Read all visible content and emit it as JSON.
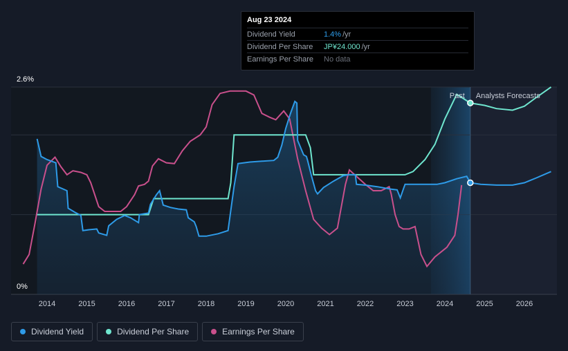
{
  "tooltip": {
    "date": "Aug 23 2024",
    "rows": [
      {
        "label": "Dividend Yield",
        "value": "1.4%",
        "unit": "/yr",
        "color": "#2e9be8"
      },
      {
        "label": "Dividend Per Share",
        "value": "JP¥24.000",
        "unit": "/yr",
        "color": "#6fe6cf"
      },
      {
        "label": "Earnings Per Share",
        "value": "No data",
        "unit": "",
        "color": "#6b707a"
      }
    ]
  },
  "markers": {
    "past": "Past",
    "forecast": "Analysts Forecasts"
  },
  "legend": [
    {
      "label": "Dividend Yield",
      "color": "#2e9be8"
    },
    {
      "label": "Dividend Per Share",
      "color": "#6fe6cf"
    },
    {
      "label": "Earnings Per Share",
      "color": "#c9508c"
    }
  ],
  "colors": {
    "yield": "#2e9be8",
    "dps": "#6fe6cf",
    "eps": "#c9508c",
    "background": "#151b27"
  },
  "chart_data": {
    "type": "line",
    "x_ticks": [
      "2014",
      "2015",
      "2016",
      "2017",
      "2018",
      "2019",
      "2020",
      "2021",
      "2022",
      "2023",
      "2024",
      "2025",
      "2026"
    ],
    "y_ticks": [
      "2.6%",
      "0%"
    ],
    "ylim": [
      0,
      2.6
    ],
    "xlim": [
      2013.4,
      2026.67
    ],
    "past_end": 2024.64,
    "forecast_shade_start": 2023.65,
    "series": [
      {
        "name": "Dividend Yield",
        "unit": "%",
        "points": [
          [
            2013.75,
            1.95
          ],
          [
            2013.85,
            1.73
          ],
          [
            2014.0,
            1.69
          ],
          [
            2014.22,
            1.65
          ],
          [
            2014.27,
            1.35
          ],
          [
            2014.5,
            1.3
          ],
          [
            2014.53,
            1.08
          ],
          [
            2014.7,
            1.03
          ],
          [
            2014.85,
            0.99
          ],
          [
            2014.9,
            0.8
          ],
          [
            2015.05,
            0.81
          ],
          [
            2015.25,
            0.82
          ],
          [
            2015.3,
            0.77
          ],
          [
            2015.5,
            0.74
          ],
          [
            2015.55,
            0.86
          ],
          [
            2015.75,
            0.94
          ],
          [
            2015.95,
            0.99
          ],
          [
            2016.1,
            0.96
          ],
          [
            2016.3,
            0.9
          ],
          [
            2016.32,
            1.0
          ],
          [
            2016.55,
            1.02
          ],
          [
            2016.6,
            1.13
          ],
          [
            2016.75,
            1.25
          ],
          [
            2016.83,
            1.3
          ],
          [
            2016.92,
            1.12
          ],
          [
            2017.1,
            1.09
          ],
          [
            2017.3,
            1.07
          ],
          [
            2017.5,
            1.06
          ],
          [
            2017.55,
            0.96
          ],
          [
            2017.7,
            0.91
          ],
          [
            2017.75,
            0.85
          ],
          [
            2017.82,
            0.73
          ],
          [
            2018.0,
            0.73
          ],
          [
            2018.3,
            0.76
          ],
          [
            2018.55,
            0.8
          ],
          [
            2018.7,
            1.35
          ],
          [
            2018.8,
            1.64
          ],
          [
            2019.1,
            1.66
          ],
          [
            2019.4,
            1.67
          ],
          [
            2019.7,
            1.68
          ],
          [
            2019.8,
            1.72
          ],
          [
            2019.9,
            1.87
          ],
          [
            2020.0,
            2.08
          ],
          [
            2020.12,
            2.27
          ],
          [
            2020.23,
            2.42
          ],
          [
            2020.28,
            2.4
          ],
          [
            2020.3,
            1.93
          ],
          [
            2020.45,
            1.75
          ],
          [
            2020.52,
            1.73
          ],
          [
            2020.55,
            1.68
          ],
          [
            2020.65,
            1.48
          ],
          [
            2020.75,
            1.3
          ],
          [
            2020.8,
            1.26
          ],
          [
            2020.95,
            1.34
          ],
          [
            2021.2,
            1.42
          ],
          [
            2021.45,
            1.49
          ],
          [
            2021.6,
            1.5
          ],
          [
            2021.75,
            1.5
          ],
          [
            2021.78,
            1.38
          ],
          [
            2022.0,
            1.37
          ],
          [
            2022.3,
            1.35
          ],
          [
            2022.65,
            1.32
          ],
          [
            2022.8,
            1.31
          ],
          [
            2022.88,
            1.21
          ],
          [
            2022.95,
            1.31
          ],
          [
            2023.0,
            1.38
          ],
          [
            2023.3,
            1.38
          ],
          [
            2023.6,
            1.38
          ],
          [
            2023.8,
            1.38
          ],
          [
            2024.0,
            1.4
          ],
          [
            2024.3,
            1.45
          ],
          [
            2024.55,
            1.48
          ],
          [
            2024.64,
            1.4
          ]
        ]
      },
      {
        "name": "Dividend Yield Forecast",
        "unit": "%",
        "points": [
          [
            2024.64,
            1.4
          ],
          [
            2024.9,
            1.38
          ],
          [
            2025.3,
            1.37
          ],
          [
            2025.7,
            1.37
          ],
          [
            2026.0,
            1.4
          ],
          [
            2026.3,
            1.46
          ],
          [
            2026.67,
            1.54
          ]
        ]
      },
      {
        "name": "Dividend Per Share",
        "unit": "relative",
        "points": [
          [
            2013.75,
            1.0
          ],
          [
            2016.55,
            1.0
          ],
          [
            2016.68,
            1.2
          ],
          [
            2017.0,
            1.2
          ],
          [
            2018.0,
            1.2
          ],
          [
            2018.55,
            1.2
          ],
          [
            2018.62,
            1.4
          ],
          [
            2018.7,
            2.0
          ],
          [
            2019.5,
            2.0
          ],
          [
            2020.5,
            2.0
          ],
          [
            2020.62,
            1.84
          ],
          [
            2020.7,
            1.5
          ],
          [
            2021.0,
            1.5
          ],
          [
            2022.0,
            1.5
          ],
          [
            2023.0,
            1.5
          ],
          [
            2023.2,
            1.54
          ],
          [
            2023.5,
            1.69
          ],
          [
            2023.75,
            1.88
          ],
          [
            2024.0,
            2.2
          ],
          [
            2024.3,
            2.51
          ],
          [
            2024.64,
            2.4
          ]
        ]
      },
      {
        "name": "Dividend Per Share Forecast",
        "unit": "relative",
        "points": [
          [
            2024.64,
            2.4
          ],
          [
            2025.0,
            2.37
          ],
          [
            2025.3,
            2.33
          ],
          [
            2025.7,
            2.31
          ],
          [
            2026.0,
            2.36
          ],
          [
            2026.3,
            2.47
          ],
          [
            2026.67,
            2.6
          ]
        ]
      },
      {
        "name": "Earnings Per Share",
        "unit": "relative",
        "points": [
          [
            2013.4,
            0.38
          ],
          [
            2013.55,
            0.5
          ],
          [
            2013.7,
            0.9
          ],
          [
            2013.85,
            1.32
          ],
          [
            2014.0,
            1.62
          ],
          [
            2014.2,
            1.72
          ],
          [
            2014.35,
            1.6
          ],
          [
            2014.5,
            1.5
          ],
          [
            2014.65,
            1.55
          ],
          [
            2014.85,
            1.53
          ],
          [
            2015.0,
            1.5
          ],
          [
            2015.1,
            1.4
          ],
          [
            2015.3,
            1.1
          ],
          [
            2015.45,
            1.04
          ],
          [
            2015.7,
            1.04
          ],
          [
            2015.85,
            1.04
          ],
          [
            2016.0,
            1.1
          ],
          [
            2016.2,
            1.25
          ],
          [
            2016.3,
            1.36
          ],
          [
            2016.45,
            1.38
          ],
          [
            2016.55,
            1.42
          ],
          [
            2016.65,
            1.61
          ],
          [
            2016.8,
            1.7
          ],
          [
            2017.0,
            1.65
          ],
          [
            2017.2,
            1.64
          ],
          [
            2017.4,
            1.8
          ],
          [
            2017.6,
            1.92
          ],
          [
            2017.85,
            2.0
          ],
          [
            2018.0,
            2.1
          ],
          [
            2018.15,
            2.38
          ],
          [
            2018.35,
            2.52
          ],
          [
            2018.6,
            2.55
          ],
          [
            2019.0,
            2.55
          ],
          [
            2019.2,
            2.5
          ],
          [
            2019.4,
            2.27
          ],
          [
            2019.6,
            2.22
          ],
          [
            2019.75,
            2.19
          ],
          [
            2019.95,
            2.3
          ],
          [
            2020.1,
            2.2
          ],
          [
            2020.3,
            1.7
          ],
          [
            2020.5,
            1.3
          ],
          [
            2020.7,
            0.94
          ],
          [
            2020.9,
            0.83
          ],
          [
            2021.1,
            0.75
          ],
          [
            2021.3,
            0.83
          ],
          [
            2021.5,
            1.38
          ],
          [
            2021.6,
            1.56
          ],
          [
            2021.8,
            1.47
          ],
          [
            2022.0,
            1.38
          ],
          [
            2022.2,
            1.3
          ],
          [
            2022.4,
            1.3
          ],
          [
            2022.6,
            1.35
          ],
          [
            2022.65,
            1.26
          ],
          [
            2022.75,
            1.0
          ],
          [
            2022.85,
            0.85
          ],
          [
            2022.95,
            0.82
          ],
          [
            2023.1,
            0.82
          ],
          [
            2023.25,
            0.85
          ],
          [
            2023.4,
            0.5
          ],
          [
            2023.55,
            0.35
          ],
          [
            2023.75,
            0.47
          ],
          [
            2024.05,
            0.59
          ],
          [
            2024.25,
            0.74
          ],
          [
            2024.33,
            1.0
          ],
          [
            2024.42,
            1.37
          ]
        ]
      }
    ],
    "title": "",
    "xlabel": "",
    "ylabel": "",
    "legend_position": "bottom-left",
    "grid": true
  }
}
